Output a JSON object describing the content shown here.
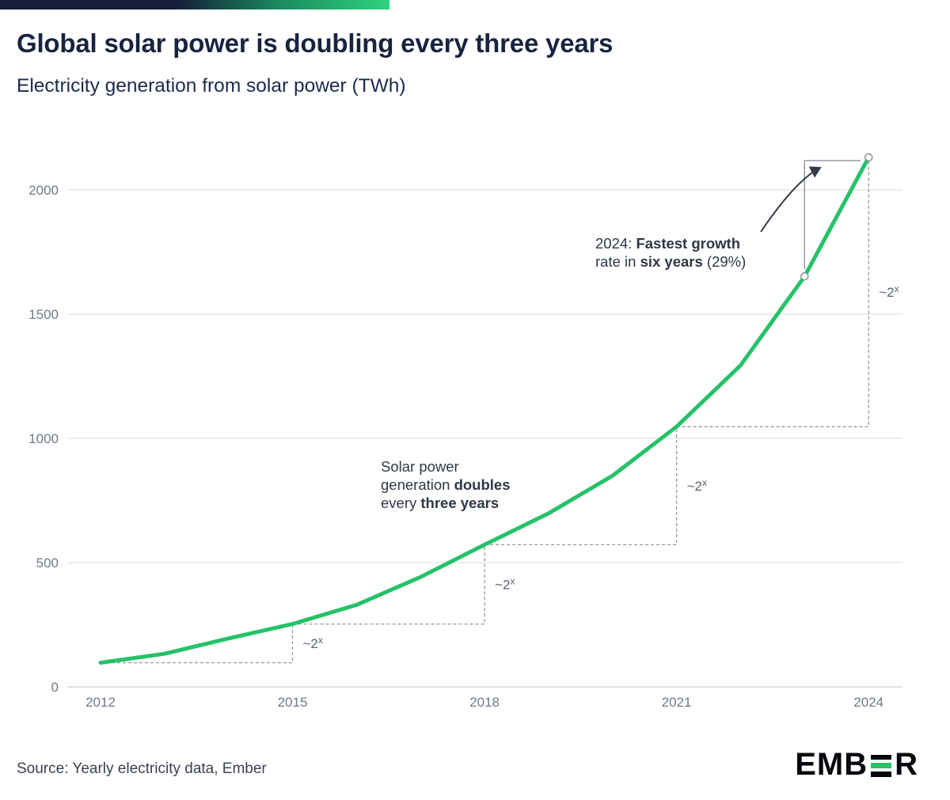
{
  "page": {
    "title": "Global solar power is doubling every three years",
    "subtitle": "Electricity generation from solar power (TWh)",
    "source": "Source: Yearly electricity data, Ember",
    "logo": {
      "part1": "EMB",
      "part2": "R"
    }
  },
  "colors": {
    "line_green": "#25c268",
    "title_navy": "#18233f",
    "accent_navy": "#151d39",
    "accent_green": "#2fd37f",
    "grid": "#d8dadd",
    "axis_text": "#6f7887",
    "dashed_gray": "#9197a1",
    "annotation_text": "#2f3747"
  },
  "chart_data": {
    "type": "line",
    "title": "Global solar power is doubling every three years",
    "subtitle": "Electricity generation from solar power (TWh)",
    "xlabel": "",
    "ylabel": "TWh",
    "grid": "horizontal",
    "legend": "none",
    "x": [
      2012,
      2013,
      2014,
      2015,
      2016,
      2017,
      2018,
      2019,
      2020,
      2021,
      2022,
      2023,
      2024
    ],
    "values": [
      97,
      133,
      195,
      253,
      330,
      442,
      572,
      698,
      850,
      1047,
      1294,
      1652,
      2131
    ],
    "series_name": "Solar electricity generation (TWh)",
    "xticks": [
      2012,
      2015,
      2018,
      2021,
      2024
    ],
    "yticks": [
      0,
      500,
      1000,
      1500,
      2000
    ],
    "ylim": [
      0,
      2200
    ],
    "doubling_markers": [
      {
        "from_year": 2012,
        "to_year": 2015,
        "label_base": "~2",
        "label_sup": "x"
      },
      {
        "from_year": 2015,
        "to_year": 2018,
        "label_base": "~2",
        "label_sup": "x"
      },
      {
        "from_year": 2018,
        "to_year": 2021,
        "label_base": "~2",
        "label_sup": "x"
      },
      {
        "from_year": 2021,
        "to_year": 2024,
        "label_base": "~2",
        "label_sup": "x"
      }
    ],
    "highlight_years": [
      2023,
      2024
    ],
    "annotations": {
      "doubling_note_lines": [
        [
          {
            "t": "Solar power",
            "b": false
          }
        ],
        [
          {
            "t": "generation ",
            "b": false
          },
          {
            "t": "doubles",
            "b": true
          }
        ],
        [
          {
            "t": "every ",
            "b": false
          },
          {
            "t": "three years",
            "b": true
          }
        ]
      ],
      "growth_note_lines": [
        [
          {
            "t": "2024: ",
            "b": false
          },
          {
            "t": "Fastest growth",
            "b": true
          }
        ],
        [
          {
            "t": "rate in ",
            "b": false
          },
          {
            "t": "six years",
            "b": true
          },
          {
            "t": " (29%)",
            "b": false
          }
        ]
      ]
    }
  }
}
